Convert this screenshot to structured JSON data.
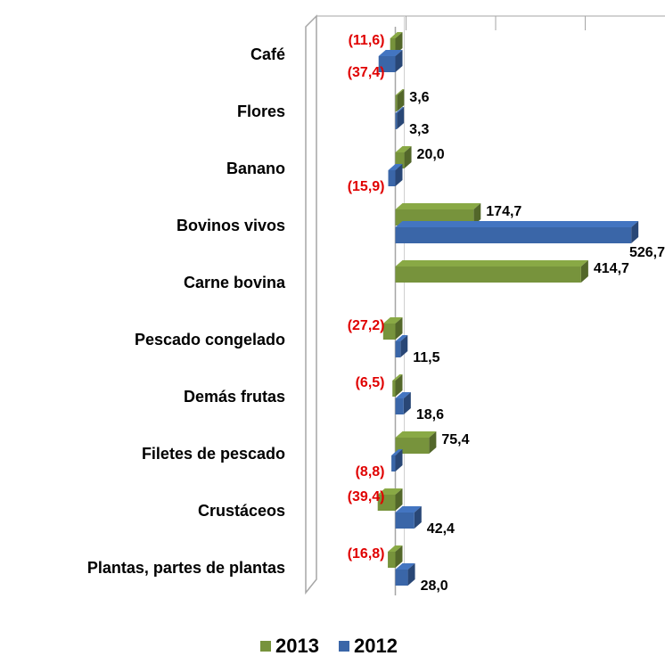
{
  "chart_data": {
    "type": "bar",
    "orientation": "horizontal",
    "categories": [
      "Café",
      "Flores",
      "Banano",
      "Bovinos vivos",
      "Carne bovina",
      "Pescado congelado",
      "Demás frutas",
      "Filetes de pescado",
      "Crustáceos",
      "Plantas, partes de plantas"
    ],
    "series": [
      {
        "name": "2013",
        "color": "#77933c",
        "values": [
          -11.6,
          3.6,
          20.0,
          174.7,
          414.7,
          -27.2,
          -6.5,
          75.4,
          -39.4,
          -16.8
        ],
        "value_labels": [
          "(11,6)",
          "3,6",
          "20,0",
          "174,7",
          "414,7",
          "(27,2)",
          "(6,5)",
          "75,4",
          "(39,4)",
          "(16,8)"
        ]
      },
      {
        "name": "2012",
        "color": "#3a66a8",
        "values": [
          -37.4,
          3.3,
          -15.9,
          526.7,
          null,
          11.5,
          18.6,
          -8.8,
          42.4,
          28.0
        ],
        "value_labels": [
          "(37,4)",
          "3,3",
          "(15,9)",
          "526,7",
          null,
          "11,5",
          "18,6",
          "(8,8)",
          "42,4",
          "28,0"
        ]
      }
    ],
    "negative_label_color": "#e00000",
    "xlim": [
      -200,
      600
    ],
    "xticks": [
      -200,
      0,
      200,
      400,
      600
    ],
    "grid": true,
    "legend": "bottom"
  }
}
